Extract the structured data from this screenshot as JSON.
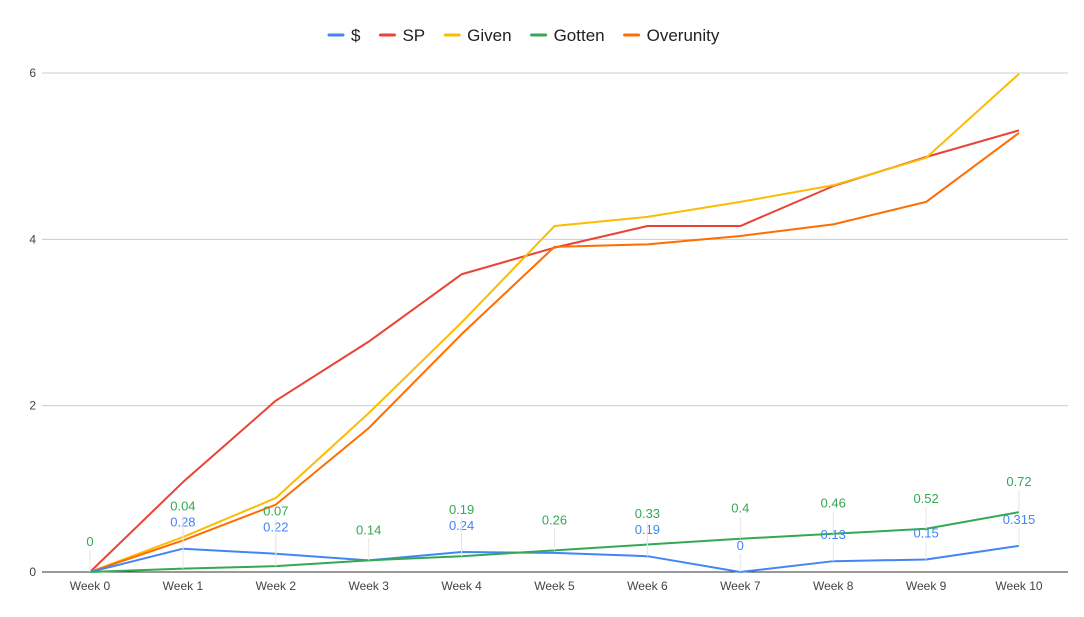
{
  "chart_data": {
    "type": "line",
    "title": "",
    "xlabel": "",
    "ylabel": "",
    "categories": [
      "Week 0",
      "Week 1",
      "Week 2",
      "Week 3",
      "Week 4",
      "Week 5",
      "Week 6",
      "Week 7",
      "Week 8",
      "Week 9",
      "Week 10"
    ],
    "ylim": [
      0,
      6
    ],
    "yticks": [
      "0",
      "2",
      "4",
      "6"
    ],
    "grid": true,
    "legend": "top",
    "series": [
      {
        "name": "$",
        "color": "#4285f4",
        "values": [
          0,
          0.28,
          0.22,
          0.14,
          0.24,
          0.23,
          0.19,
          0,
          0.13,
          0.15,
          0.315
        ],
        "labels": [
          "",
          "0.28",
          "0.22",
          "",
          "0.24",
          "",
          "0.19",
          "0",
          "0.13",
          "0.15",
          "0.315"
        ]
      },
      {
        "name": "SP",
        "color": "#ea4335",
        "values": [
          0,
          1.08,
          2.06,
          2.77,
          3.58,
          3.9,
          4.16,
          4.16,
          4.64,
          4.99,
          5.31
        ]
      },
      {
        "name": "Given",
        "color": "#fbbc04",
        "values": [
          0,
          0.42,
          0.89,
          1.91,
          3.0,
          4.16,
          4.27,
          4.45,
          4.65,
          4.98,
          5.99
        ]
      },
      {
        "name": "Gotten",
        "color": "#34a853",
        "values": [
          0,
          0.04,
          0.07,
          0.14,
          0.19,
          0.26,
          0.33,
          0.4,
          0.46,
          0.52,
          0.72
        ],
        "labels": [
          "0",
          "0.04",
          "0.07",
          "0.14",
          "0.19",
          "0.26",
          "0.33",
          "0.4",
          "0.46",
          "0.52",
          "0.72"
        ]
      },
      {
        "name": "Overunity",
        "color": "#ff6d01",
        "values": [
          0,
          0.38,
          0.81,
          1.73,
          2.86,
          3.91,
          3.94,
          4.04,
          4.18,
          4.45,
          5.28
        ]
      }
    ]
  }
}
